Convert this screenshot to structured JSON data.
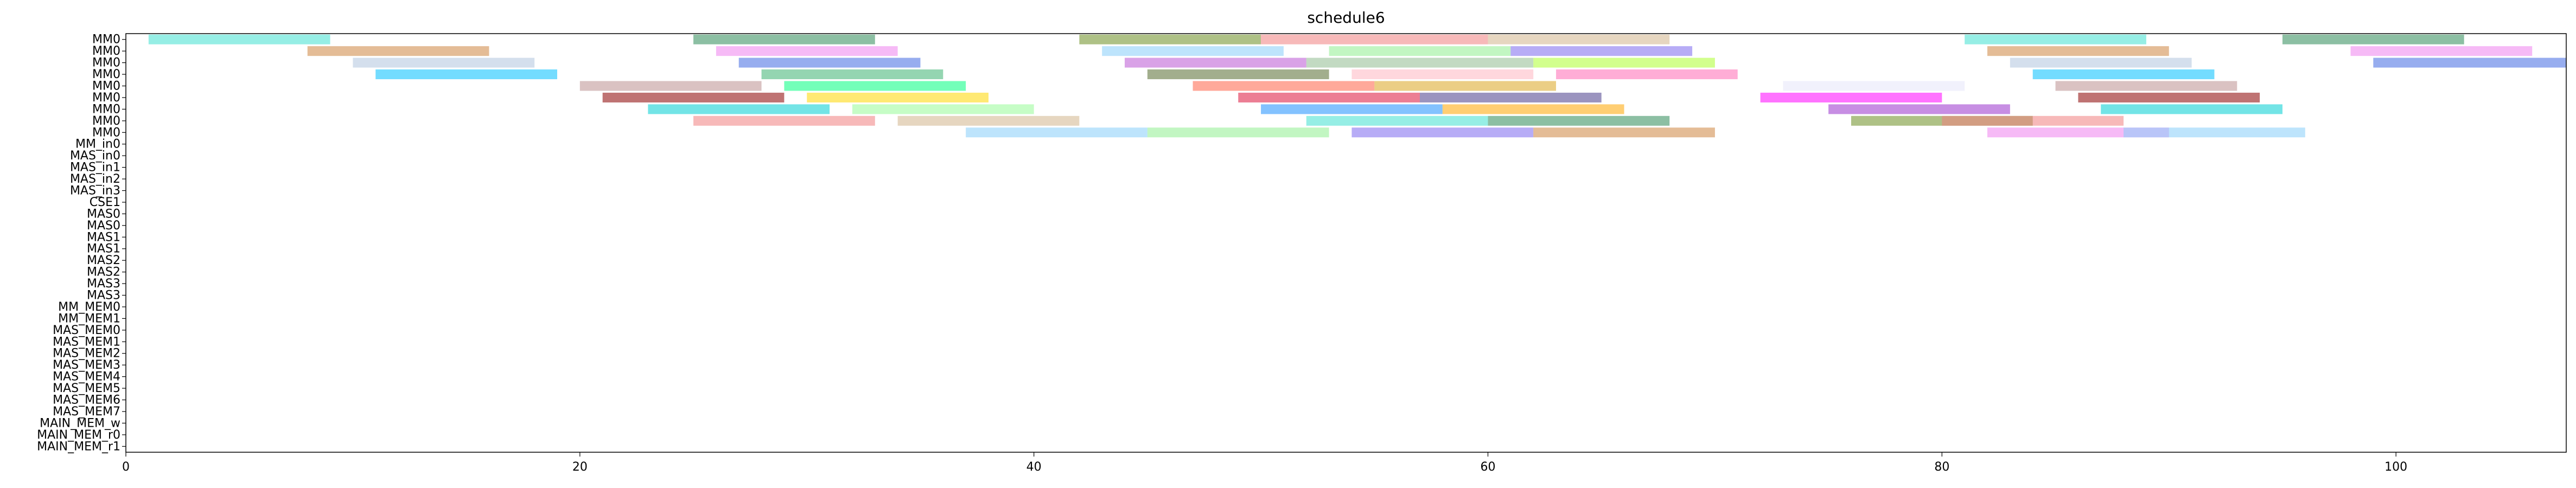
{
  "chart_data": {
    "type": "gantt",
    "title": "schedule6",
    "xlabel": "",
    "ylabel": "",
    "xlim": [
      0,
      107.5
    ],
    "x_ticks": [
      0,
      20,
      40,
      60,
      80,
      100
    ],
    "grid": false,
    "legend": "none",
    "rows": [
      "MM0",
      "MM0",
      "MM0",
      "MM0",
      "MM0",
      "MM0",
      "MM0",
      "MM0",
      "MM0",
      "MM_in0",
      "MAS_in0",
      "MAS_in1",
      "MAS_in2",
      "MAS_in3",
      "CSE1",
      "MAS0",
      "MAS0",
      "MAS1",
      "MAS1",
      "MAS2",
      "MAS2",
      "MAS3",
      "MAS3",
      "MM_MEM0",
      "MM_MEM1",
      "MAS_MEM0",
      "MAS_MEM1",
      "MAS_MEM2",
      "MAS_MEM3",
      "MAS_MEM4",
      "MAS_MEM5",
      "MAS_MEM6",
      "MAS_MEM7",
      "MAIN_MEM_w",
      "MAIN_MEM_r0",
      "MAIN_MEM_r1"
    ],
    "palette": [
      "#40e0d0",
      "#8b0000",
      "#ffb6c1",
      "#90ee90",
      "#9932cc",
      "#ff6347",
      "#4169e1",
      "#2e8b57",
      "#ffd700",
      "#ff69b4",
      "#7b68ee",
      "#00ced1",
      "#daa520",
      "#ba55d3",
      "#6b8e23",
      "#dc143c",
      "#00bfff",
      "#cd853f",
      "#98fb98",
      "#e6e6fa",
      "#8fbc8f",
      "#f08080",
      "#483d8b",
      "#3cb371",
      "#ee82ee",
      "#1e90ff",
      "#bc8f8f",
      "#adff2f",
      "#d2b48c",
      "#ff00ff",
      "#556b2f",
      "#87cefa",
      "#ffa500",
      "#00ff7f",
      "#b0c4de"
    ],
    "tasks": [
      {
        "row": 0,
        "start": 1.0,
        "end": 9.0
      },
      {
        "row": 0,
        "start": 25.0,
        "end": 33.0
      },
      {
        "row": 0,
        "start": 42.0,
        "end": 50.0
      },
      {
        "row": 0,
        "start": 50.0,
        "end": 60.0
      },
      {
        "row": 0,
        "start": 60.0,
        "end": 68.0
      },
      {
        "row": 0,
        "start": 81.0,
        "end": 89.0
      },
      {
        "row": 0,
        "start": 95.0,
        "end": 103.0
      },
      {
        "row": 1,
        "start": 8.0,
        "end": 16.0
      },
      {
        "row": 1,
        "start": 26.0,
        "end": 34.0
      },
      {
        "row": 1,
        "start": 43.0,
        "end": 51.0
      },
      {
        "row": 1,
        "start": 53.0,
        "end": 61.0
      },
      {
        "row": 1,
        "start": 61.0,
        "end": 69.0
      },
      {
        "row": 1,
        "start": 82.0,
        "end": 90.0
      },
      {
        "row": 1,
        "start": 98.0,
        "end": 106.0
      },
      {
        "row": 2,
        "start": 10.0,
        "end": 18.0
      },
      {
        "row": 2,
        "start": 27.0,
        "end": 35.0
      },
      {
        "row": 2,
        "start": 44.0,
        "end": 52.0
      },
      {
        "row": 2,
        "start": 52.0,
        "end": 62.0
      },
      {
        "row": 2,
        "start": 62.0,
        "end": 70.0
      },
      {
        "row": 2,
        "start": 83.0,
        "end": 91.0
      },
      {
        "row": 2,
        "start": 99.0,
        "end": 107.5
      },
      {
        "row": 3,
        "start": 11.0,
        "end": 19.0
      },
      {
        "row": 3,
        "start": 28.0,
        "end": 36.0
      },
      {
        "row": 3,
        "start": 45.0,
        "end": 53.0
      },
      {
        "row": 3,
        "start": 54.0,
        "end": 62.0
      },
      {
        "row": 3,
        "start": 63.0,
        "end": 71.0
      },
      {
        "row": 3,
        "start": 84.0,
        "end": 92.0
      },
      {
        "row": 4,
        "start": 20.0,
        "end": 28.0
      },
      {
        "row": 4,
        "start": 29.0,
        "end": 37.0
      },
      {
        "row": 4,
        "start": 47.0,
        "end": 55.0
      },
      {
        "row": 4,
        "start": 55.0,
        "end": 63.0
      },
      {
        "row": 4,
        "start": 73.0,
        "end": 81.0
      },
      {
        "row": 4,
        "start": 85.0,
        "end": 93.0
      },
      {
        "row": 5,
        "start": 21.0,
        "end": 29.0
      },
      {
        "row": 5,
        "start": 30.0,
        "end": 38.0
      },
      {
        "row": 5,
        "start": 49.0,
        "end": 57.0
      },
      {
        "row": 5,
        "start": 57.0,
        "end": 65.0
      },
      {
        "row": 5,
        "start": 72.0,
        "end": 80.0
      },
      {
        "row": 5,
        "start": 86.0,
        "end": 94.0
      },
      {
        "row": 6,
        "start": 23.0,
        "end": 31.0
      },
      {
        "row": 6,
        "start": 32.0,
        "end": 40.0
      },
      {
        "row": 6,
        "start": 50.0,
        "end": 58.0
      },
      {
        "row": 6,
        "start": 58.0,
        "end": 66.0
      },
      {
        "row": 6,
        "start": 75.0,
        "end": 83.0
      },
      {
        "row": 6,
        "start": 87.0,
        "end": 95.0
      },
      {
        "row": 7,
        "start": 25.0,
        "end": 33.0
      },
      {
        "row": 7,
        "start": 34.0,
        "end": 42.0
      },
      {
        "row": 7,
        "start": 52.0,
        "end": 60.0
      },
      {
        "row": 7,
        "start": 60.0,
        "end": 68.0
      },
      {
        "row": 7,
        "start": 76.0,
        "end": 84.0
      },
      {
        "row": 7,
        "start": 80.0,
        "end": 88.0
      },
      {
        "row": 8,
        "start": 37.0,
        "end": 45.0
      },
      {
        "row": 8,
        "start": 45.0,
        "end": 53.0
      },
      {
        "row": 8,
        "start": 54.0,
        "end": 62.0
      },
      {
        "row": 8,
        "start": 62.0,
        "end": 70.0
      },
      {
        "row": 8,
        "start": 82.0,
        "end": 90.0
      },
      {
        "row": 8,
        "start": 88.0,
        "end": 96.0
      }
    ]
  }
}
